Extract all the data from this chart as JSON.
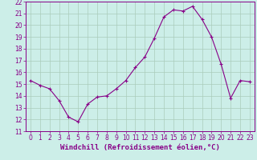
{
  "x": [
    0,
    1,
    2,
    3,
    4,
    5,
    6,
    7,
    8,
    9,
    10,
    11,
    12,
    13,
    14,
    15,
    16,
    17,
    18,
    19,
    20,
    21,
    22,
    23
  ],
  "y": [
    15.3,
    14.9,
    14.6,
    13.6,
    12.2,
    11.8,
    13.3,
    13.9,
    14.0,
    14.6,
    15.3,
    16.4,
    17.3,
    18.9,
    20.7,
    21.3,
    21.2,
    21.6,
    20.5,
    19.0,
    16.7,
    13.8,
    15.3,
    15.2
  ],
  "xlim": [
    -0.5,
    23.5
  ],
  "ylim": [
    11,
    22
  ],
  "yticks": [
    11,
    12,
    13,
    14,
    15,
    16,
    17,
    18,
    19,
    20,
    21,
    22
  ],
  "xticks": [
    0,
    1,
    2,
    3,
    4,
    5,
    6,
    7,
    8,
    9,
    10,
    11,
    12,
    13,
    14,
    15,
    16,
    17,
    18,
    19,
    20,
    21,
    22,
    23
  ],
  "line_color": "#880088",
  "marker": "+",
  "bg_color": "#cceee8",
  "grid_color": "#aaccbb",
  "xlabel": "Windchill (Refroidissement éolien,°C)",
  "xlabel_fontsize": 6.5,
  "tick_fontsize": 5.5
}
